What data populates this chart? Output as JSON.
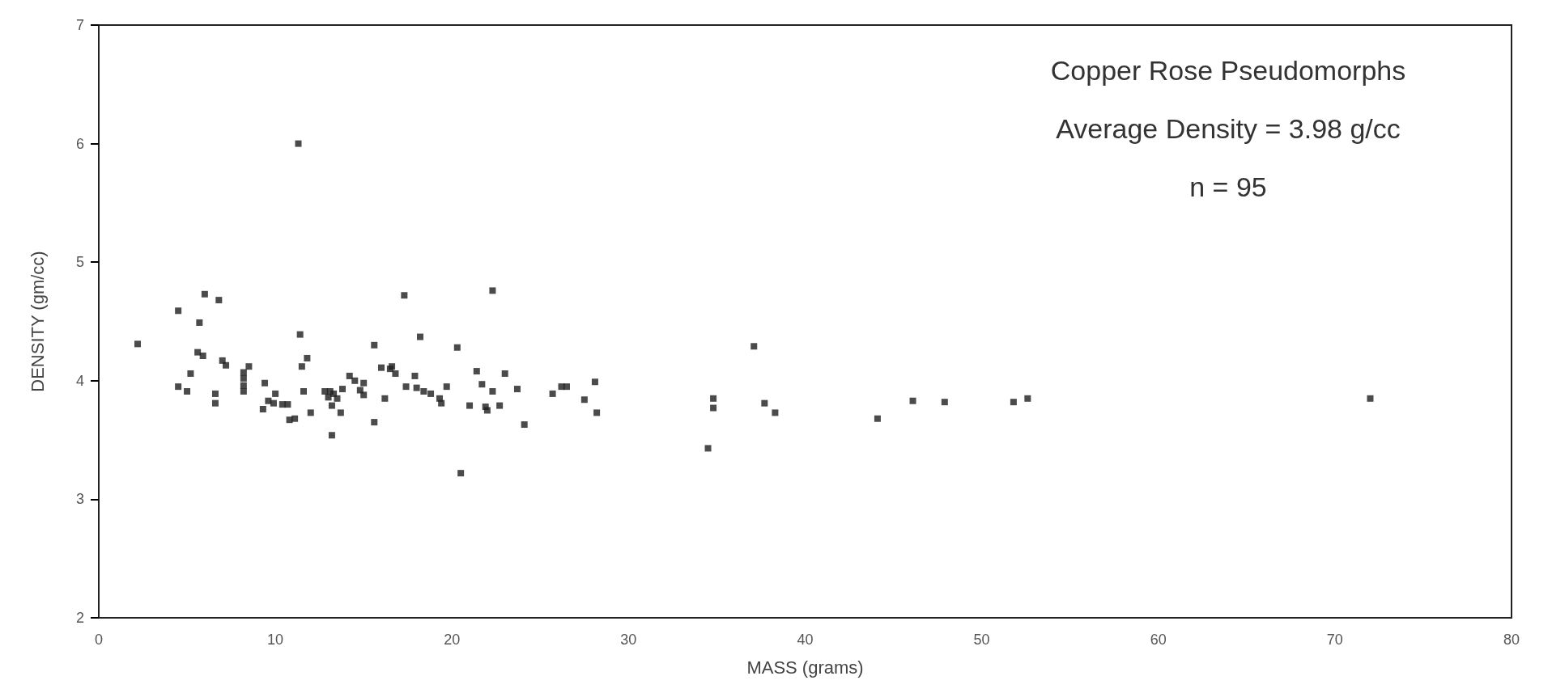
{
  "chart_data": {
    "type": "scatter",
    "xlabel": "MASS (grams)",
    "ylabel": "DENSITY (gm/cc)",
    "annotations": [
      "Copper Rose Pseudomorphs",
      "Average Density = 3.98 g/cc",
      "n = 95"
    ],
    "xlim": [
      0,
      80
    ],
    "xticks": [
      0,
      10,
      20,
      30,
      40,
      50,
      60,
      70,
      80
    ],
    "ylim": [
      2,
      7
    ],
    "yticks": [
      2,
      3,
      4,
      5,
      6,
      7
    ],
    "grid": false,
    "marker": "square",
    "series": [
      {
        "color": "#1e1e1e",
        "x": [
          2.2,
          4.5,
          4.5,
          5.0,
          5.2,
          5.7,
          5.6,
          5.9,
          6.0,
          6.6,
          6.6,
          6.8,
          7.0,
          7.2,
          8.2,
          8.2,
          8.2,
          8.2,
          8.5,
          9.3,
          9.4,
          9.6,
          9.9,
          10.0,
          10.4,
          10.7,
          10.8,
          11.1,
          11.3,
          11.4,
          11.5,
          11.8,
          11.6,
          12.0,
          12.8,
          13.0,
          13.1,
          13.2,
          13.3,
          13.2,
          13.5,
          13.7,
          13.8,
          14.2,
          14.5,
          14.8,
          15.0,
          15.0,
          15.6,
          15.6,
          16.0,
          16.2,
          16.5,
          16.6,
          16.8,
          17.3,
          17.4,
          17.9,
          18.0,
          18.2,
          18.4,
          18.8,
          19.3,
          19.4,
          19.7,
          20.3,
          20.5,
          21.0,
          21.4,
          21.7,
          21.9,
          22.0,
          22.3,
          22.3,
          22.7,
          23.0,
          23.7,
          24.1,
          25.7,
          26.2,
          26.5,
          27.5,
          28.1,
          28.2,
          34.5,
          34.8,
          34.8,
          37.1,
          37.7,
          38.3,
          44.1,
          46.1,
          47.9,
          51.8,
          52.6,
          72.0
        ],
        "values": [
          4.31,
          4.59,
          3.95,
          3.91,
          4.06,
          4.49,
          4.24,
          4.21,
          4.73,
          3.89,
          3.81,
          4.68,
          4.17,
          4.13,
          4.02,
          3.96,
          3.91,
          4.07,
          4.12,
          3.76,
          3.98,
          3.83,
          3.81,
          3.89,
          3.8,
          3.8,
          3.67,
          3.68,
          6.0,
          4.39,
          4.12,
          4.19,
          3.91,
          3.73,
          3.91,
          3.86,
          3.91,
          3.79,
          3.89,
          3.54,
          3.85,
          3.73,
          3.93,
          4.04,
          4.0,
          3.92,
          3.88,
          3.98,
          3.65,
          4.3,
          4.11,
          3.85,
          4.1,
          4.12,
          4.06,
          4.72,
          3.95,
          4.04,
          3.94,
          4.37,
          3.91,
          3.89,
          3.85,
          3.81,
          3.95,
          4.28,
          3.22,
          3.79,
          4.08,
          3.97,
          3.78,
          3.75,
          3.91,
          4.76,
          3.79,
          4.06,
          3.93,
          3.63,
          3.89,
          3.95,
          3.95,
          3.84,
          3.99,
          3.73,
          3.43,
          3.85,
          3.77,
          4.29,
          3.81,
          3.73,
          3.68,
          3.83,
          3.82,
          3.82,
          3.85,
          3.85
        ]
      }
    ]
  }
}
